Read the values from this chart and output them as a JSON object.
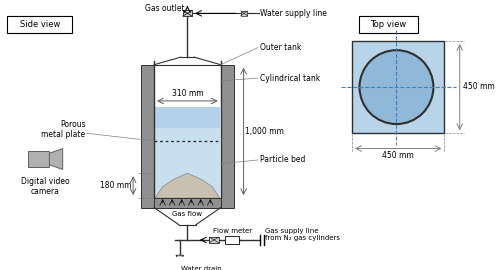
{
  "bg_color": "#ffffff",
  "side_view_label": "Side view",
  "top_view_label": "Top view",
  "labels": {
    "gas_outlet": "Gas outlet",
    "water_supply_line": "Water supply line",
    "outer_tank": "Outer tank",
    "cylindrical_tank": "Cylindrical tank",
    "porous_metal_plate": "Porous\nmetal plate",
    "particle_bed": "Particle bed",
    "digital_video": "Digital video\ncamera",
    "gas_flow": "Gas flow",
    "flow_meter": "Flow meter",
    "gas_supply": "Gas supply line\nfrom N₂ gas cylinders",
    "water_drain": "Water drain",
    "dim_310": "310 mm",
    "dim_1000": "1,000 mm",
    "dim_180": "180 mm",
    "dim_450_v": "450 mm",
    "dim_450_h": "450 mm"
  },
  "colors": {
    "water_light": "#c8dff0",
    "water_medium": "#a8c8e8",
    "particle": "#c8c0b0",
    "tank_gray": "#909090",
    "tank_dark": "#303030",
    "blue_square": "#b8d4e8",
    "circle_fill": "#90b8d8",
    "dashed_line": "#4080c0",
    "cam_gray": "#b0b0b0"
  }
}
